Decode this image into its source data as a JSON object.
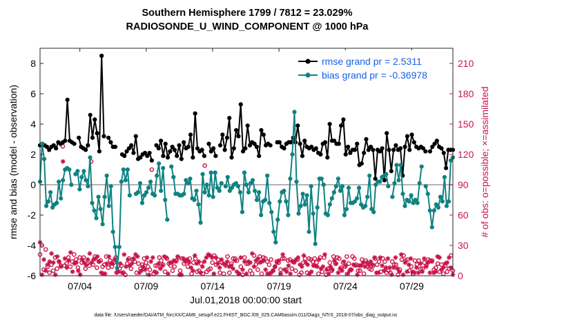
{
  "chart_data": {
    "type": "line",
    "title_line1": "Southern Hemisphere 1799 / 7812 = 23.029%",
    "title_line2": "RADIOSONDE_U_WIND_COMPONENT @ 1000 hPa",
    "xlabel": "Jul.01,2018 00:00:00 start",
    "ylabel": "rmse and bias (model - observation)",
    "ylabel_right": "# of obs: o=possible; ×=assimilated",
    "ylim": [
      -6,
      9
    ],
    "ylim_right": [
      0,
      225
    ],
    "yticks": [
      "-6",
      "-4",
      "-2",
      "0",
      "2",
      "4",
      "6",
      "8"
    ],
    "yticks_right": [
      "0",
      "30",
      "60",
      "90",
      "120",
      "150",
      "180",
      "210"
    ],
    "xticks": [
      "07/04",
      "07/09",
      "07/14",
      "07/19",
      "07/24",
      "07/29"
    ],
    "xtick_days": [
      4,
      9,
      14,
      19,
      24,
      29
    ],
    "x_range_days": [
      1,
      32.1
    ],
    "footnote": "data file: /Users/raeder/DAI/ATM_forcXX/CAM6_setup/f.e21.FHIST_BGC.f09_025.CAM6assim.011/Diags_NTrS_2018-07/obs_diag_output.nc",
    "zero_line_color": "#b4b4b4",
    "series": [
      {
        "name": "rmse",
        "legend": "rmse grand pr = 2.5311",
        "color": "#000000",
        "values": [
          2.6,
          2.7,
          2.6,
          2.5,
          2.3,
          2.5,
          2.6,
          2.4,
          2.8,
          2.7,
          2.8,
          2.9,
          5.6,
          2.9,
          2.8,
          2.7,
          null,
          3.1,
          2.5,
          2.4,
          2.3,
          2.6,
          4.6,
          3.1,
          4.3,
          3.4,
          2.2,
          8.5,
          3.2,
          null,
          3.1,
          2.8,
          2.5,
          2.5,
          null,
          null,
          2.0,
          1.9,
          2.2,
          2.4,
          2.6,
          2.1,
          3.2,
          1.7,
          1.8,
          2.0,
          2.1,
          1.9,
          2.1,
          1.6,
          null,
          2.6,
          2.4,
          2.9,
          1.9,
          2.7,
          1.8,
          2.2,
          2.5,
          2.3,
          1.9,
          2.6,
          1.7,
          2.8,
          2.4,
          2.5,
          3.3,
          1.8,
          4.7,
          2.4,
          2.2,
          2.3,
          1.9,
          null,
          2.7,
          2.2,
          2.4,
          1.9,
          null,
          2.6,
          3.3,
          2.3,
          3.1,
          4.4,
          1.8,
          2.4,
          3.6,
          3.2,
          5.3,
          2.2,
          2.4,
          3.9,
          2.6,
          2.8,
          2.7,
          2.5,
          1.9,
          3.6,
          3.3,
          2.6,
          2.7,
          2.6,
          null,
          null,
          2.8,
          2.8,
          2.5,
          2.4,
          2.7,
          2.8,
          2.8,
          3.1,
          2.8,
          3.9,
          2.7,
          1.9,
          2.9,
          2.5,
          2.4,
          2.5,
          2.3,
          2.4,
          2.1,
          2.0,
          2.7,
          2.8,
          1.8,
          4.0,
          2.9,
          2.9,
          2.7,
          2.7,
          3.9,
          4.3,
          2.0,
          2.5,
          2.1,
          2.3,
          2.3,
          2.7,
          1.3,
          1.4,
          2.1,
          3.0,
          2.3,
          2.5,
          2.3,
          0.4,
          2.3,
          2.2,
          2.4,
          0.3,
          3.4,
          2.3,
          0.9,
          2.3,
          2.6,
          2.3,
          2.4,
          0.6,
          2.5,
          3.2,
          2.3,
          3.3,
          2.8,
          2.5,
          2.4,
          2.5,
          2.4,
          2.2,
          null,
          2.2,
          2.5,
          2.7,
          2.9,
          2.5,
          2.4,
          2.1,
          1.1,
          2.3,
          2.3,
          2.3
        ]
      },
      {
        "name": "bias",
        "legend": "bias grand pr = -0.36978",
        "color": "#0f8282",
        "values": [
          0.2,
          2.7,
          1.7,
          -1.4,
          -1.1,
          -0.5,
          -1.5,
          -1.3,
          -1.2,
          0.2,
          -0.9,
          0.3,
          1.0,
          1.1,
          1.0,
          0.0,
          null,
          0.7,
          0.9,
          -0.3,
          0.5,
          0.9,
          0.3,
          -0.1,
          1.8,
          -1.2,
          -1.7,
          -2.2,
          -0.8,
          -1.6,
          -2.6,
          -0.8,
          0.6,
          -1.4,
          -0.1,
          -3.1,
          -4.1,
          -5.5,
          -4.1,
          0.2,
          1.0,
          0.3,
          1.0,
          -0.7,
          null,
          null,
          -0.6,
          -0.5,
          0.1,
          -1.2,
          -0.7,
          -0.5,
          -0.2,
          0.2,
          -0.6,
          -0.7,
          0.6,
          1.4,
          -0.4,
          1.1,
          -1.0,
          -2.3,
          null,
          1.2,
          0.5,
          -0.6,
          -0.6,
          -0.7,
          -0.7,
          -0.6,
          0.3,
          0.1,
          0.4,
          -0.9,
          -1.0,
          -0.4,
          -1.3,
          -2.5,
          0.7,
          -0.5,
          0.0,
          -0.7,
          0.8,
          -0.8,
          0.8,
          -0.2,
          -0.4,
          0.1,
          null,
          -0.1,
          0.5,
          -0.4,
          -0.2,
          0.0,
          0.1,
          -0.1,
          -0.5,
          -1.8,
          0.8,
          0.0,
          -0.5,
          0.1,
          0.3,
          -0.4,
          -1.0,
          -0.5,
          -2.0,
          -1.1,
          -1.0,
          0.6,
          -1.2,
          -1.8,
          -3.1,
          -3.8,
          -2.3,
          -1.1,
          -0.5,
          -0.4,
          -1.1,
          -2.0,
          0.4,
          2.0,
          4.8,
          0.2,
          -1.9,
          -1.4,
          -0.6,
          -1.3,
          -0.7,
          -3.1,
          -0.1,
          -1.9,
          -3.9,
          -1.5,
          0.4,
          0.4,
          0.0,
          -1.9,
          -2.0,
          -1.3,
          -0.9,
          -0.5,
          -0.1,
          0.4,
          -0.4,
          -0.1,
          -2.0,
          -1.6,
          -0.2,
          -1.2,
          -1.2,
          -1.1,
          -0.9,
          -0.2,
          -1.3,
          -1.5,
          -1.4,
          -0.8,
          0.6,
          -1.6,
          -1.8,
          0.0,
          0.2,
          0.2,
          0.5,
          0.6,
          0.7,
          -0.1,
          null,
          -0.8,
          0.1,
          1.3,
          0.3,
          1.3,
          -0.6,
          -1.4,
          -1.0,
          -1.1,
          -0.7,
          -1.2,
          -1.0,
          -1.2,
          0.1,
          1.2,
          null,
          -0.1,
          -0.6,
          -1.7,
          -2.8,
          -1.7,
          -1.3,
          -1.5,
          -0.8,
          -1.1,
          0.5,
          -1.4,
          -1.1,
          1.6,
          1.8
        ]
      }
    ],
    "possible_values": [
      21,
      30,
      6,
      26,
      9,
      3,
      11,
      5,
      18,
      7,
      14,
      10,
      128,
      10,
      12,
      18,
      9,
      14,
      21,
      16,
      8,
      18,
      13,
      18,
      7,
      12,
      10,
      113,
      11,
      19,
      8,
      14,
      15,
      9,
      11,
      19,
      8,
      15,
      9,
      13,
      18,
      4,
      7,
      10,
      3,
      1,
      12,
      17,
      7,
      16,
      14,
      3,
      12,
      7,
      11,
      17,
      13,
      9,
      6,
      105,
      2,
      10,
      10,
      18,
      15,
      11,
      4,
      17,
      12,
      10,
      5,
      9,
      15,
      18,
      5,
      17,
      12,
      15,
      9,
      17,
      2,
      13,
      17,
      4,
      5,
      12,
      2,
      109,
      4,
      6,
      7,
      13,
      20,
      11,
      16,
      3,
      13,
      2,
      10,
      19,
      3,
      12,
      17,
      17,
      15,
      2,
      9,
      1,
      18,
      12,
      12,
      5,
      2,
      20,
      11,
      6,
      19,
      2,
      18,
      17,
      14,
      11,
      16,
      5,
      9,
      14,
      13,
      6,
      17,
      17,
      6,
      15,
      16,
      7,
      14,
      5,
      16,
      1,
      3,
      13,
      17,
      3,
      17,
      16,
      14,
      17,
      13,
      2,
      18,
      4,
      18,
      1,
      7,
      13,
      5,
      19,
      12,
      18,
      17,
      8,
      13,
      9,
      19,
      12,
      6,
      19,
      17,
      11,
      5,
      5,
      16,
      2,
      15,
      9,
      7,
      6,
      10,
      17,
      11,
      14,
      4,
      17,
      14,
      3,
      5,
      3,
      14,
      11,
      11,
      1,
      6,
      16,
      20,
      15,
      16,
      5,
      9,
      2,
      15,
      11,
      15,
      7,
      7,
      13,
      10,
      16,
      15,
      15,
      6,
      8,
      12,
      4,
      11,
      2,
      10,
      4,
      7,
      20,
      5
    ],
    "assimilated_values": [
      33,
      1,
      16,
      5,
      11,
      14,
      22,
      13,
      1,
      19,
      14,
      9,
      113,
      17,
      8,
      15,
      23,
      4,
      12,
      13,
      5,
      1,
      16,
      13,
      11,
      16,
      22,
      13,
      16,
      17,
      19,
      14,
      3,
      2,
      2,
      12,
      19,
      12,
      12,
      16,
      3,
      4,
      12,
      3,
      21,
      9,
      16,
      10,
      12,
      17,
      21,
      19,
      3,
      5,
      9,
      6,
      18,
      1,
      14,
      18,
      4,
      3,
      12,
      7,
      10,
      19,
      18,
      2,
      13,
      13,
      15,
      14,
      19,
      1,
      1,
      17,
      14,
      16,
      13,
      8,
      5,
      20,
      12,
      14,
      3,
      9,
      14,
      18,
      21,
      20,
      18,
      2,
      18,
      12,
      8,
      16,
      12,
      11,
      14,
      9,
      10,
      7,
      15,
      4,
      2,
      18,
      6,
      14,
      2,
      14,
      13,
      22,
      9,
      15,
      17,
      13,
      14,
      15,
      6,
      2,
      2,
      3,
      5,
      9,
      13,
      15,
      2,
      21,
      6,
      4,
      10,
      2,
      14,
      13,
      16,
      18,
      11,
      9,
      20,
      13,
      11,
      2,
      4,
      10,
      10,
      9,
      16,
      7,
      9,
      21,
      6,
      2,
      9,
      6,
      15,
      12,
      3,
      7,
      5,
      14,
      10,
      2,
      5,
      6,
      11,
      10,
      1,
      10,
      10,
      13,
      9,
      13,
      11,
      14,
      11,
      18,
      3,
      3,
      18,
      10,
      5,
      8,
      17,
      8,
      1,
      8,
      18,
      7,
      4,
      21,
      1,
      13,
      4,
      11,
      17,
      4,
      3,
      8,
      3,
      12,
      4,
      17,
      9,
      13,
      3,
      14,
      3,
      4,
      19,
      18,
      6,
      8,
      12,
      13,
      18,
      8,
      1
    ],
    "possible_color": "#c8144b",
    "assimilated_color": "#c8144b"
  }
}
